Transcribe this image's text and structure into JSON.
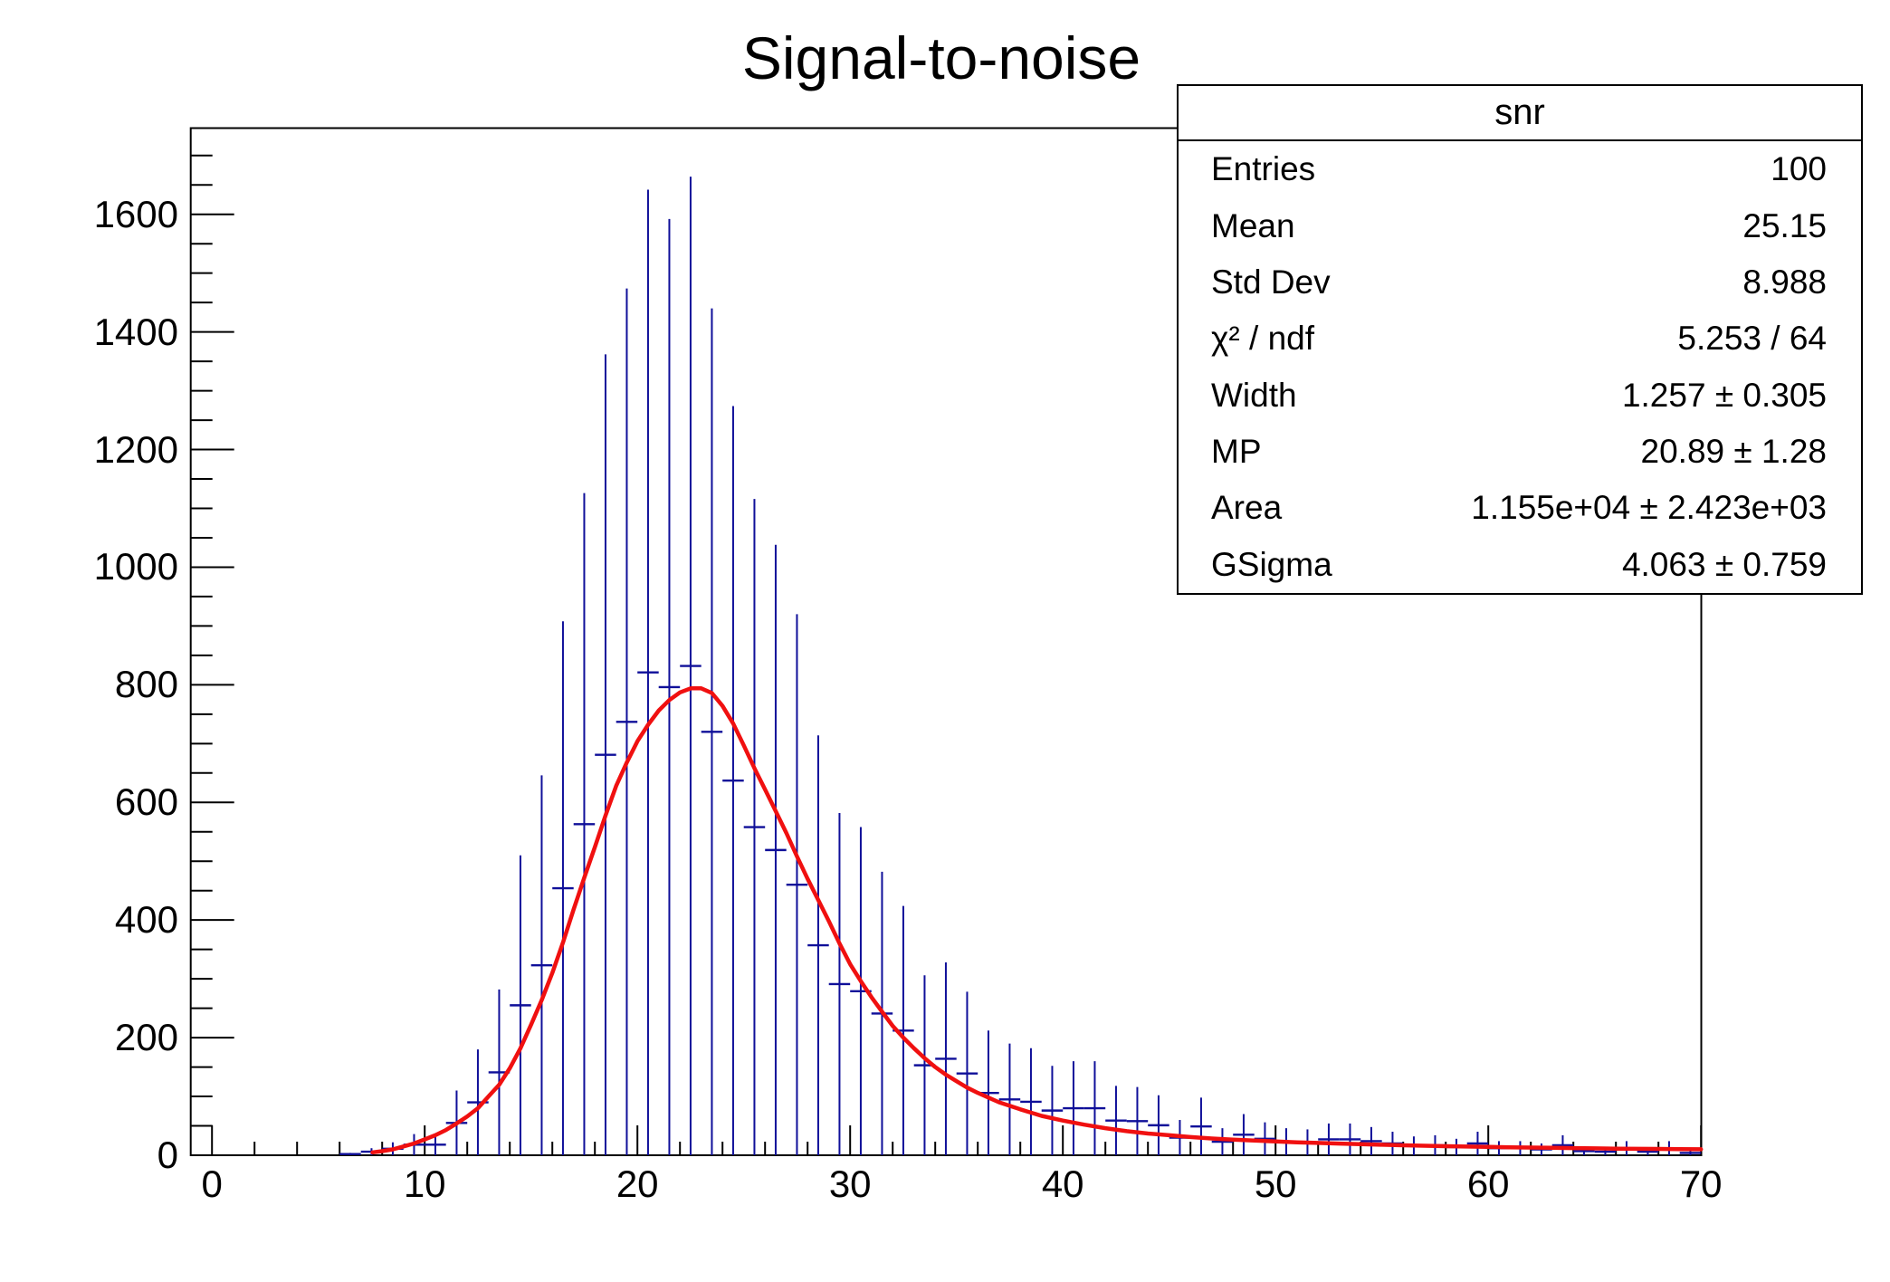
{
  "chart_data": {
    "type": "bar",
    "subtype": "histogram-with-error-bars-and-fit",
    "title": "Signal-to-noise",
    "series_name": "snr",
    "legend_position": "none",
    "grid": false,
    "x_axis": {
      "min": -1,
      "max": 70,
      "major_tick_values": [
        0,
        10,
        20,
        30,
        40,
        50,
        60,
        70
      ],
      "tick_labels": [
        "0",
        "10",
        "20",
        "30",
        "40",
        "50",
        "60",
        "70"
      ],
      "minor_tick_step": 2,
      "label": ""
    },
    "y_axis": {
      "min": 0,
      "max": 1747,
      "major_tick_values": [
        0,
        200,
        400,
        600,
        800,
        1000,
        1200,
        1400,
        1600
      ],
      "tick_labels": [
        "0",
        "200",
        "400",
        "600",
        "800",
        "1000",
        "1200",
        "1400",
        "1600"
      ],
      "minor_tick_step": 50,
      "label": ""
    },
    "bins": {
      "x_start": 0,
      "bin_width": 1,
      "contents": [
        0,
        0,
        0,
        0,
        0,
        0,
        2,
        6,
        11,
        18,
        18,
        55,
        90,
        141,
        255,
        323,
        454,
        563,
        681,
        737,
        821,
        796,
        832,
        720,
        637,
        558,
        519,
        460,
        357,
        291,
        279,
        241,
        212,
        153,
        164,
        139,
        106,
        95,
        91,
        76,
        80,
        80,
        59,
        58,
        51,
        30,
        49,
        23,
        35,
        28,
        23,
        22,
        27,
        27,
        24,
        20,
        16,
        17,
        14,
        20,
        12,
        12,
        10,
        17,
        7,
        6,
        12,
        6,
        12,
        4
      ],
      "error_rule": "bin error equals bin content (error bar spans 0 to 2x content)"
    },
    "fit_curve_points": [
      [
        7.55,
        5
      ],
      [
        8,
        7
      ],
      [
        8.5,
        10
      ],
      [
        9,
        15
      ],
      [
        9.5,
        20
      ],
      [
        10,
        27
      ],
      [
        10.5,
        34
      ],
      [
        11,
        43
      ],
      [
        11.5,
        54
      ],
      [
        12,
        66
      ],
      [
        12.5,
        80
      ],
      [
        13,
        100
      ],
      [
        13.5,
        120
      ],
      [
        14,
        148
      ],
      [
        14.5,
        182
      ],
      [
        15,
        222
      ],
      [
        15.5,
        264
      ],
      [
        16,
        310
      ],
      [
        16.5,
        362
      ],
      [
        17,
        418
      ],
      [
        17.5,
        472
      ],
      [
        18,
        524
      ],
      [
        18.5,
        578
      ],
      [
        19,
        628
      ],
      [
        19.5,
        668
      ],
      [
        20,
        704
      ],
      [
        20.5,
        732
      ],
      [
        21,
        756
      ],
      [
        21.5,
        774
      ],
      [
        22,
        787
      ],
      [
        22.5,
        794
      ],
      [
        23,
        794
      ],
      [
        23.5,
        786
      ],
      [
        24,
        764
      ],
      [
        24.5,
        734
      ],
      [
        25,
        697
      ],
      [
        25.5,
        658
      ],
      [
        26,
        622
      ],
      [
        26.5,
        585
      ],
      [
        27,
        548
      ],
      [
        27.5,
        508
      ],
      [
        28,
        470
      ],
      [
        28.5,
        434
      ],
      [
        29,
        398
      ],
      [
        29.5,
        360
      ],
      [
        30,
        325
      ],
      [
        30.5,
        296
      ],
      [
        31,
        269
      ],
      [
        31.5,
        244
      ],
      [
        32,
        220
      ],
      [
        32.5,
        200
      ],
      [
        33,
        182
      ],
      [
        33.5,
        165
      ],
      [
        34,
        150
      ],
      [
        34.5,
        137
      ],
      [
        35,
        126
      ],
      [
        35.5,
        115
      ],
      [
        36,
        106
      ],
      [
        36.5,
        98
      ],
      [
        37,
        90
      ],
      [
        37.5,
        84
      ],
      [
        38,
        78
      ],
      [
        39,
        67
      ],
      [
        40,
        59
      ],
      [
        41,
        52
      ],
      [
        42,
        46
      ],
      [
        43,
        41
      ],
      [
        44,
        37
      ],
      [
        45,
        34
      ],
      [
        46,
        31
      ],
      [
        47,
        28.5
      ],
      [
        48,
        26.5
      ],
      [
        49,
        25
      ],
      [
        50,
        23.5
      ],
      [
        51,
        22
      ],
      [
        52,
        21
      ],
      [
        53,
        19.8
      ],
      [
        54,
        18.8
      ],
      [
        55,
        17.8
      ],
      [
        56,
        17
      ],
      [
        57,
        16.2
      ],
      [
        58,
        15.4
      ],
      [
        59,
        14.8
      ],
      [
        60,
        14.2
      ],
      [
        61,
        13.6
      ],
      [
        62,
        13.1
      ],
      [
        63,
        12.6
      ],
      [
        64,
        12.1
      ],
      [
        65,
        11.7
      ],
      [
        66,
        11.3
      ],
      [
        67,
        11
      ],
      [
        68,
        10.7
      ],
      [
        69,
        10.4
      ],
      [
        70,
        10.2
      ]
    ],
    "colors": {
      "histogram": "#0f0f99",
      "fit_line": "#f01010",
      "frame": "#000000",
      "background": "#ffffff",
      "text": "#000000"
    }
  },
  "stats_box": {
    "title": "snr",
    "rows": [
      {
        "label": "Entries",
        "value": "100"
      },
      {
        "label": "Mean",
        "value": "25.15"
      },
      {
        "label": "Std Dev",
        "value": "8.988"
      },
      {
        "label": "χ² / ndf",
        "value": "5.253 / 64"
      },
      {
        "label": "Width",
        "value": "1.257 ± 0.305"
      },
      {
        "label": "MP",
        "value": "20.89 ± 1.28"
      },
      {
        "label": "Area",
        "value": "1.155e+04 ± 2.423e+03"
      },
      {
        "label": "GSigma",
        "value": "4.063 ± 0.759"
      }
    ]
  }
}
